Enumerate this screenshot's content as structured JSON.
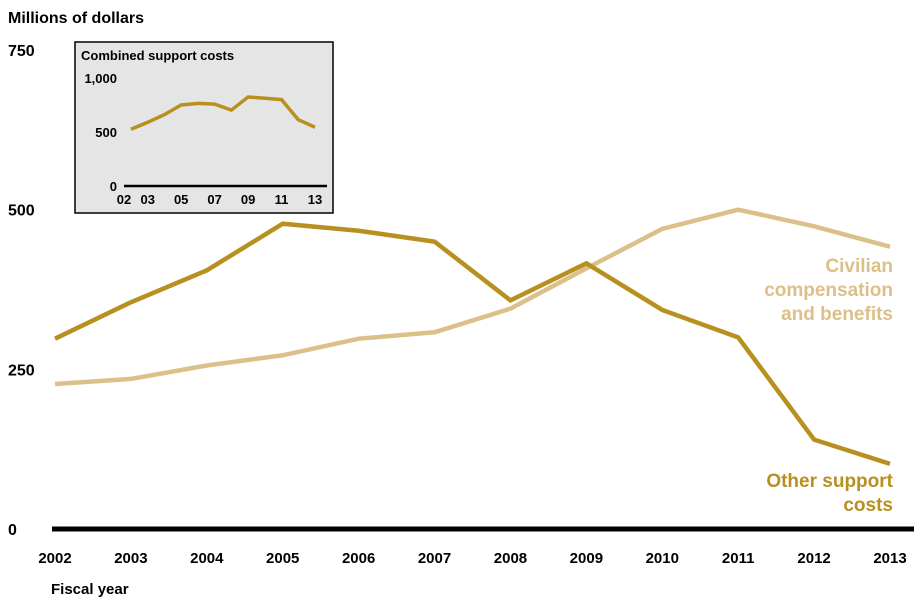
{
  "colors": {
    "other": "#b8901f",
    "civilian": "#dcc08a",
    "axis": "#000000",
    "inset_bg": "#e5e5e5"
  },
  "chart_data": [
    {
      "type": "line",
      "ylabel": "Millions of dollars",
      "xlabel": "Fiscal year",
      "ylim": [
        0,
        750
      ],
      "yticks": [
        0,
        250,
        500,
        750
      ],
      "x": [
        "2002",
        "2003",
        "2004",
        "2005",
        "2006",
        "2007",
        "2008",
        "2009",
        "2010",
        "2011",
        "2012",
        "2013"
      ],
      "series": [
        {
          "name": "Other support costs",
          "values": [
            298,
            355,
            405,
            478,
            467,
            450,
            358,
            416,
            343,
            300,
            140,
            102
          ]
        },
        {
          "name": "Civilian compensation and benefits",
          "values": [
            227,
            235,
            256,
            272,
            298,
            308,
            345,
            408,
            470,
            500,
            474,
            442
          ]
        }
      ],
      "legend_labels": {
        "civilian": [
          "Civilian",
          "compensation",
          "and benefits"
        ],
        "other": [
          "Other support",
          "costs"
        ]
      }
    },
    {
      "type": "line",
      "title": "Combined support costs",
      "ylim": [
        0,
        1000
      ],
      "yticks": [
        "0",
        "500",
        "1,000"
      ],
      "xticks": [
        "02",
        "03",
        "05",
        "07",
        "09",
        "11",
        "13"
      ],
      "x": [
        2002,
        2003,
        2004,
        2005,
        2006,
        2007,
        2008,
        2009,
        2010,
        2011,
        2012,
        2013
      ],
      "values": [
        525,
        590,
        661,
        750,
        765,
        758,
        703,
        824,
        813,
        800,
        614,
        544
      ]
    }
  ]
}
